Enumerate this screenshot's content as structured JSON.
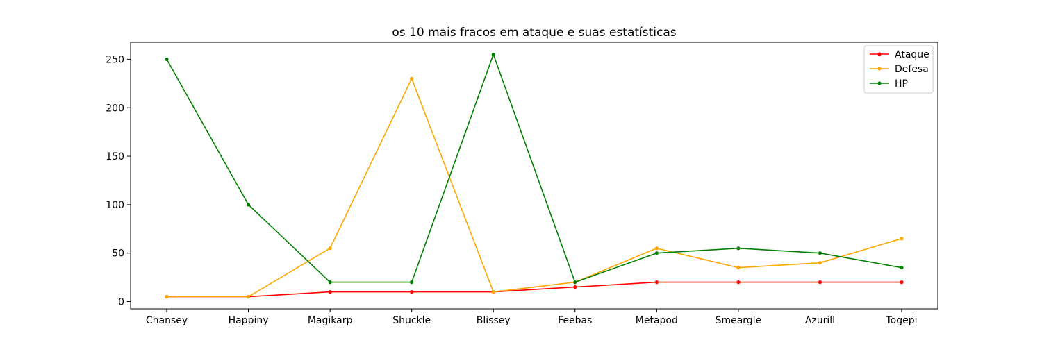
{
  "chart_data": {
    "type": "line",
    "title": "os 10 mais fracos em ataque e suas estatísticas",
    "xlabel": "",
    "ylabel": "",
    "categories": [
      "Chansey",
      "Happiny",
      "Magikarp",
      "Shuckle",
      "Blissey",
      "Feebas",
      "Metapod",
      "Smeargle",
      "Azurill",
      "Togepi"
    ],
    "series": [
      {
        "name": "Ataque",
        "color": "#ff0000",
        "values": [
          5,
          5,
          10,
          10,
          10,
          15,
          20,
          20,
          20,
          20
        ]
      },
      {
        "name": "Defesa",
        "color": "#ffa500",
        "values": [
          5,
          5,
          55,
          230,
          10,
          20,
          55,
          35,
          40,
          65
        ]
      },
      {
        "name": "HP",
        "color": "#008000",
        "values": [
          250,
          100,
          20,
          20,
          255,
          20,
          50,
          55,
          50,
          35
        ]
      }
    ],
    "ylim": [
      -7.5,
      267.5
    ],
    "yticks": [
      0,
      50,
      100,
      150,
      200,
      250
    ],
    "grid": false,
    "legend_position": "top-right",
    "marker": "dot"
  }
}
